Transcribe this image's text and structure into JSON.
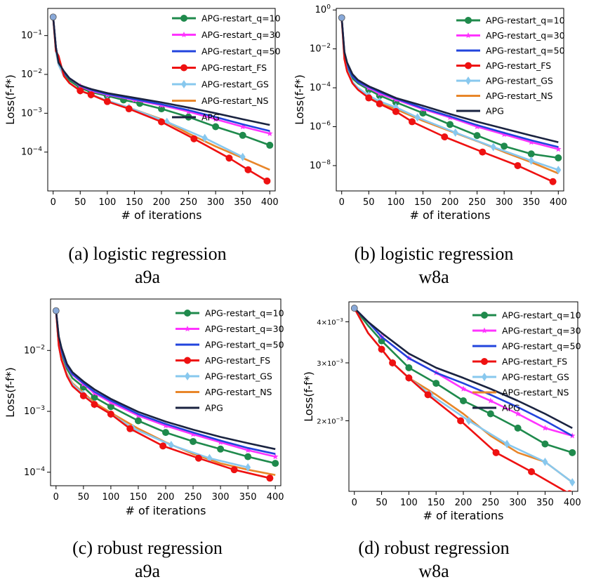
{
  "legend_labels": [
    "APG-restart_q=10",
    "APG-restart_q=30",
    "APG-restart_q=50",
    "APG-restart_FS",
    "APG-restart_GS",
    "APG-restart_NS",
    "APG"
  ],
  "series_colors": [
    "#1f8a4c",
    "#ff33ff",
    "#2244dd",
    "#ee1111",
    "#88c8ee",
    "#e8862a",
    "#1a2340"
  ],
  "captions": [
    {
      "line1": "(a) logistic regression",
      "line2": "a9a"
    },
    {
      "line1": "(b) logistic regression",
      "line2": "w8a"
    },
    {
      "line1": "(c) robust regression",
      "line2": "a9a"
    },
    {
      "line1": "(d) robust regression",
      "line2": "w8a"
    }
  ],
  "chart_data": [
    {
      "type": "line",
      "xlabel": "# of iterations",
      "ylabel": "Loss(f-f*)",
      "yscale": "log",
      "xlim": [
        -10,
        410
      ],
      "ylim": [
        1e-05,
        0.5
      ],
      "xticks": [
        "0",
        "50",
        "100",
        "150",
        "200",
        "250",
        "300",
        "350",
        "400"
      ],
      "yticks": [
        "10^-1",
        "10^-2",
        "10^-3",
        "10^-4"
      ],
      "legend_position": "top-right",
      "series": [
        {
          "name": "APG-restart_q=10",
          "x": [
            0,
            5,
            10,
            20,
            30,
            50,
            70,
            100,
            130,
            160,
            200,
            250,
            300,
            350,
            400
          ],
          "y": [
            0.3,
            0.05,
            0.02,
            0.01,
            0.007,
            0.0045,
            0.0035,
            0.0028,
            0.0022,
            0.0018,
            0.0013,
            0.0008,
            0.00045,
            0.00027,
            0.00015
          ]
        },
        {
          "name": "APG-restart_q=30",
          "x": [
            0,
            5,
            10,
            20,
            30,
            50,
            70,
            100,
            150,
            200,
            250,
            300,
            350,
            400
          ],
          "y": [
            0.3,
            0.05,
            0.02,
            0.011,
            0.008,
            0.005,
            0.0038,
            0.003,
            0.0022,
            0.0016,
            0.0011,
            0.0007,
            0.00045,
            0.0003
          ]
        },
        {
          "name": "APG-restart_q=50",
          "x": [
            0,
            5,
            10,
            20,
            30,
            50,
            70,
            100,
            150,
            200,
            250,
            300,
            350,
            400
          ],
          "y": [
            0.3,
            0.05,
            0.02,
            0.011,
            0.008,
            0.0051,
            0.004,
            0.0031,
            0.0023,
            0.0017,
            0.0012,
            0.0008,
            0.00052,
            0.00035
          ]
        },
        {
          "name": "APG-restart_FS",
          "x": [
            0,
            5,
            10,
            20,
            30,
            50,
            70,
            100,
            140,
            200,
            260,
            325,
            360,
            395
          ],
          "y": [
            0.3,
            0.04,
            0.03,
            0.009,
            0.006,
            0.0038,
            0.003,
            0.002,
            0.0013,
            0.0006,
            0.00022,
            7e-05,
            3.5e-05,
            1.8e-05
          ]
        },
        {
          "name": "APG-restart_GS",
          "x": [
            0,
            5,
            10,
            20,
            30,
            50,
            70,
            100,
            140,
            210,
            280,
            350
          ],
          "y": [
            0.3,
            0.04,
            0.018,
            0.009,
            0.006,
            0.0038,
            0.003,
            0.0021,
            0.0014,
            0.0006,
            0.00023,
            7.5e-05
          ]
        },
        {
          "name": "APG-restart_NS",
          "x": [
            0,
            5,
            10,
            20,
            30,
            50,
            70,
            100,
            140,
            200,
            250,
            300,
            350,
            400
          ],
          "y": [
            0.3,
            0.04,
            0.018,
            0.009,
            0.006,
            0.0038,
            0.003,
            0.0021,
            0.0014,
            0.0007,
            0.0003,
            0.00014,
            7e-05,
            3.5e-05
          ]
        },
        {
          "name": "APG",
          "x": [
            0,
            5,
            10,
            20,
            30,
            50,
            70,
            100,
            150,
            200,
            250,
            300,
            350,
            400
          ],
          "y": [
            0.3,
            0.05,
            0.02,
            0.012,
            0.008,
            0.0052,
            0.0042,
            0.0033,
            0.0025,
            0.0019,
            0.0014,
            0.001,
            0.0007,
            0.0005
          ]
        }
      ]
    },
    {
      "type": "line",
      "xlabel": "# of iterations",
      "ylabel": "Loss(f-f*)",
      "yscale": "log",
      "xlim": [
        -10,
        410
      ],
      "ylim": [
        5e-10,
        1.2
      ],
      "xticks": [
        "0",
        "50",
        "100",
        "150",
        "200",
        "250",
        "300",
        "350",
        "400"
      ],
      "yticks": [
        "10^0",
        "10^-2",
        "10^-4",
        "10^-6",
        "10^-8"
      ],
      "legend_position": "top-right",
      "series": [
        {
          "name": "APG-restart_q=10",
          "x": [
            0,
            5,
            10,
            20,
            30,
            50,
            70,
            100,
            150,
            200,
            250,
            300,
            350,
            400
          ],
          "y": [
            0.4,
            0.005,
            0.001,
            0.0003,
            0.00017,
            8e-05,
            4e-05,
            1.8e-05,
            5e-06,
            1.3e-06,
            3.5e-07,
            1e-07,
            4e-08,
            2.5e-08
          ]
        },
        {
          "name": "APG-restart_q=30",
          "x": [
            0,
            5,
            10,
            20,
            30,
            50,
            70,
            100,
            150,
            200,
            250,
            300,
            350,
            400
          ],
          "y": [
            0.4,
            0.006,
            0.0015,
            0.0004,
            0.0002,
            0.0001,
            5e-05,
            2.5e-05,
            8e-06,
            3e-06,
            1e-06,
            4e-07,
            1.6e-07,
            7e-08
          ]
        },
        {
          "name": "APG-restart_q=50",
          "x": [
            0,
            5,
            10,
            20,
            30,
            50,
            70,
            100,
            150,
            200,
            250,
            300,
            350,
            400
          ],
          "y": [
            0.4,
            0.006,
            0.0015,
            0.0004,
            0.0002,
            0.00011,
            6e-05,
            2.8e-05,
            9e-06,
            3.4e-06,
            1.2e-06,
            4.8e-07,
            2e-07,
            9e-08
          ]
        },
        {
          "name": "APG-restart_FS",
          "x": [
            0,
            5,
            10,
            20,
            30,
            50,
            70,
            100,
            130,
            190,
            260,
            325,
            390
          ],
          "y": [
            0.4,
            0.003,
            0.0007,
            0.00017,
            8e-05,
            3e-05,
            1.5e-05,
            6e-06,
            1.8e-06,
            3e-07,
            5e-08,
            1e-08,
            1.5e-09
          ]
        },
        {
          "name": "APG-restart_GS",
          "x": [
            0,
            5,
            10,
            20,
            30,
            50,
            70,
            100,
            140,
            210,
            280,
            350,
            400
          ],
          "y": [
            0.4,
            0.003,
            0.0008,
            0.0002,
            0.0001,
            4e-05,
            2e-05,
            1e-05,
            3e-06,
            5e-07,
            9e-08,
            1.8e-08,
            6e-09
          ]
        },
        {
          "name": "APG-restart_NS",
          "x": [
            0,
            5,
            10,
            20,
            30,
            50,
            70,
            100,
            150,
            200,
            250,
            300,
            350,
            400
          ],
          "y": [
            0.4,
            0.003,
            0.0007,
            0.00018,
            9e-05,
            3.5e-05,
            1.7e-05,
            8e-06,
            2e-06,
            6e-07,
            1.8e-07,
            5e-08,
            1.5e-08,
            4e-09
          ]
        },
        {
          "name": "APG",
          "x": [
            0,
            5,
            10,
            20,
            30,
            50,
            70,
            100,
            150,
            200,
            250,
            300,
            350,
            400
          ],
          "y": [
            0.4,
            0.007,
            0.002,
            0.0005,
            0.00025,
            0.00012,
            7e-05,
            3e-05,
            1.2e-05,
            4.5e-06,
            1.8e-06,
            8e-07,
            3.5e-07,
            1.6e-07
          ]
        }
      ]
    },
    {
      "type": "line",
      "xlabel": "# of iterations",
      "ylabel": "Loss(f-f*)",
      "yscale": "log",
      "xlim": [
        -10,
        410
      ],
      "ylim": [
        6e-05,
        0.07
      ],
      "xticks": [
        "0",
        "50",
        "100",
        "150",
        "200",
        "250",
        "300",
        "350",
        "400"
      ],
      "yticks": [
        "10^-2",
        "10^-3",
        "10^-4"
      ],
      "legend_position": "top-right",
      "series": [
        {
          "name": "APG-restart_q=10",
          "x": [
            0,
            5,
            10,
            20,
            30,
            50,
            70,
            100,
            150,
            200,
            250,
            300,
            350,
            400
          ],
          "y": [
            0.045,
            0.015,
            0.009,
            0.005,
            0.0035,
            0.0025,
            0.0017,
            0.0012,
            0.0007,
            0.00045,
            0.00032,
            0.00024,
            0.00018,
            0.00014
          ]
        },
        {
          "name": "APG-restart_q=30",
          "x": [
            0,
            5,
            10,
            20,
            30,
            50,
            70,
            100,
            150,
            200,
            250,
            300,
            350,
            400
          ],
          "y": [
            0.045,
            0.016,
            0.01,
            0.0055,
            0.004,
            0.0028,
            0.002,
            0.0014,
            0.00085,
            0.00058,
            0.00042,
            0.00031,
            0.00023,
            0.00018
          ]
        },
        {
          "name": "APG-restart_q=50",
          "x": [
            0,
            5,
            10,
            20,
            30,
            50,
            70,
            100,
            150,
            200,
            250,
            300,
            350,
            400
          ],
          "y": [
            0.045,
            0.016,
            0.01,
            0.0056,
            0.0041,
            0.0029,
            0.0021,
            0.0015,
            0.0009,
            0.00062,
            0.00045,
            0.00033,
            0.00025,
            0.0002
          ]
        },
        {
          "name": "APG-restart_FS",
          "x": [
            0,
            5,
            10,
            20,
            30,
            50,
            70,
            100,
            135,
            195,
            260,
            325,
            390
          ],
          "y": [
            0.045,
            0.012,
            0.007,
            0.0038,
            0.0026,
            0.0018,
            0.0013,
            0.0009,
            0.00052,
            0.00027,
            0.00017,
            0.00011,
            8e-05
          ]
        },
        {
          "name": "APG-restart_GS",
          "x": [
            0,
            5,
            10,
            20,
            30,
            50,
            70,
            100,
            140,
            210,
            280,
            350
          ],
          "y": [
            0.045,
            0.012,
            0.007,
            0.004,
            0.0028,
            0.0019,
            0.0013,
            0.0009,
            0.00053,
            0.00028,
            0.00017,
            0.00012
          ]
        },
        {
          "name": "APG-restart_NS",
          "x": [
            0,
            5,
            10,
            20,
            30,
            50,
            70,
            100,
            150,
            200,
            250,
            300,
            350,
            400
          ],
          "y": [
            0.045,
            0.012,
            0.0072,
            0.0041,
            0.0029,
            0.002,
            0.0014,
            0.00095,
            0.00052,
            0.00031,
            0.0002,
            0.00014,
            0.00011,
            9e-05
          ]
        },
        {
          "name": "APG",
          "x": [
            0,
            5,
            10,
            20,
            30,
            50,
            70,
            100,
            150,
            200,
            250,
            300,
            350,
            400
          ],
          "y": [
            0.045,
            0.017,
            0.011,
            0.006,
            0.0044,
            0.0031,
            0.0023,
            0.0016,
            0.00098,
            0.00068,
            0.0005,
            0.00038,
            0.0003,
            0.00024
          ]
        }
      ]
    },
    {
      "type": "line",
      "xlabel": "# of iterations",
      "ylabel": "Loss(f-f*)",
      "yscale": "log",
      "xlim": [
        -10,
        410
      ],
      "ylim": [
        0.00122,
        0.0046
      ],
      "xticks": [
        "0",
        "50",
        "100",
        "150",
        "200",
        "250",
        "300",
        "350",
        "400"
      ],
      "yticks": [
        "4×10^-3",
        "3×10^-3",
        "2×10^-3"
      ],
      "legend_position": "top-right",
      "series": [
        {
          "name": "APG-restart_q=10",
          "x": [
            0,
            25,
            50,
            100,
            150,
            200,
            250,
            300,
            350,
            400
          ],
          "y": [
            0.0044,
            0.0039,
            0.0035,
            0.0029,
            0.0026,
            0.0023,
            0.0021,
            0.0019,
            0.0017,
            0.0016
          ]
        },
        {
          "name": "APG-restart_q=30",
          "x": [
            0,
            25,
            50,
            100,
            150,
            200,
            250,
            300,
            350,
            400
          ],
          "y": [
            0.0044,
            0.004,
            0.0036,
            0.0031,
            0.0028,
            0.0025,
            0.0023,
            0.0021,
            0.0019,
            0.0018
          ]
        },
        {
          "name": "APG-restart_q=50",
          "x": [
            0,
            25,
            50,
            100,
            150,
            200,
            250,
            300,
            350,
            400
          ],
          "y": [
            0.0044,
            0.004,
            0.0036,
            0.0031,
            0.0028,
            0.0026,
            0.0024,
            0.0022,
            0.002,
            0.0018
          ]
        },
        {
          "name": "APG-restart_FS",
          "x": [
            0,
            25,
            50,
            70,
            100,
            135,
            195,
            260,
            325,
            395
          ],
          "y": [
            0.0044,
            0.0037,
            0.0033,
            0.003,
            0.0027,
            0.0024,
            0.002,
            0.0016,
            0.0014,
            0.0012
          ]
        },
        {
          "name": "APG-restart_GS",
          "x": [
            0,
            25,
            50,
            70,
            100,
            140,
            210,
            280,
            350,
            400
          ],
          "y": [
            0.0044,
            0.0037,
            0.0033,
            0.003,
            0.0027,
            0.0024,
            0.002,
            0.0017,
            0.0015,
            0.0013
          ]
        },
        {
          "name": "APG-restart_NS",
          "x": [
            0,
            25,
            50,
            70,
            100,
            150,
            200,
            250,
            300,
            350,
            400
          ],
          "y": [
            0.0044,
            0.0037,
            0.0033,
            0.003,
            0.0027,
            0.0024,
            0.0021,
            0.0018,
            0.0016,
            0.0015,
            0.0013
          ]
        },
        {
          "name": "APG",
          "x": [
            0,
            25,
            50,
            100,
            150,
            200,
            250,
            300,
            350,
            400
          ],
          "y": [
            0.0044,
            0.004,
            0.0037,
            0.0032,
            0.0029,
            0.0027,
            0.0025,
            0.0023,
            0.0021,
            0.0019
          ]
        }
      ]
    }
  ]
}
